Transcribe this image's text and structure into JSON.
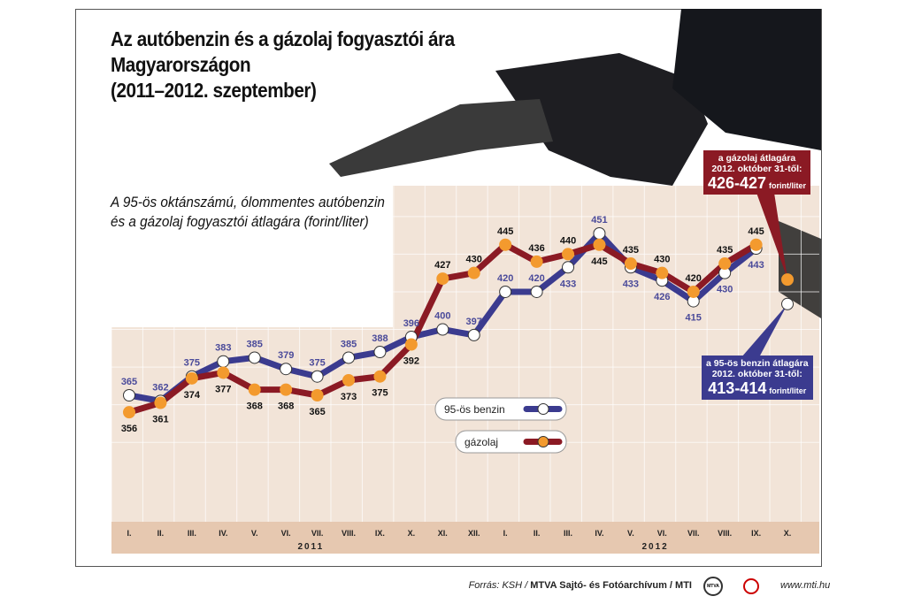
{
  "title": [
    "Az autóbenzin és a gázolaj fogyasztói ára",
    "Magyarországon",
    "(2011–2012. szeptember)"
  ],
  "subtitle": [
    "A 95-ös oktánszámú, ólommentes autóbenzin",
    "és a gázolaj fogyasztói átlagára (forint/liter)"
  ],
  "chart_data": {
    "type": "line",
    "x": [
      "I.",
      "II.",
      "III.",
      "IV.",
      "V.",
      "VI.",
      "VII.",
      "VIII.",
      "IX.",
      "X.",
      "XI.",
      "XII.",
      "I.",
      "II.",
      "III.",
      "IV.",
      "V.",
      "VI.",
      "VII.",
      "VIII.",
      "IX.",
      "X."
    ],
    "years": [
      {
        "label": "2011",
        "months": "I.–XII."
      },
      {
        "label": "2012",
        "months": "I.–X."
      }
    ],
    "ylabel": "forint/liter",
    "series": [
      {
        "name": "95-ös benzin",
        "color": "#3b3b8f",
        "values": [
          365,
          362,
          375,
          383,
          385,
          379,
          375,
          385,
          388,
          396,
          400,
          397,
          420,
          420,
          433,
          451,
          433,
          426,
          415,
          430,
          443,
          null
        ],
        "projected": 413.5
      },
      {
        "name": "gázolaj",
        "color": "#8b1a24",
        "values": [
          356,
          361,
          374,
          377,
          368,
          368,
          365,
          373,
          375,
          392,
          427,
          430,
          445,
          436,
          440,
          445,
          435,
          430,
          420,
          435,
          445,
          null
        ],
        "projected": 426.5
      }
    ],
    "grid": true,
    "legend": "center"
  },
  "callouts": {
    "diesel": {
      "line1": "a gázolaj átlagára",
      "line2": "2012. október 31-től:",
      "value": "426-427",
      "unit": "forint/liter",
      "color": "#8b1a24"
    },
    "petrol": {
      "line1": "a 95-ös benzin átlagára",
      "line2": "2012. október 31-től:",
      "value": "413-414",
      "unit": "forint/liter",
      "color": "#3b3b8f"
    }
  },
  "footer": {
    "source_prefix": "Forrás: KSH / ",
    "source_bold": "MTVA Sajtó- és Fotóarchívum / MTI",
    "logo1": "MTVA",
    "url": "www.mti.hu"
  }
}
